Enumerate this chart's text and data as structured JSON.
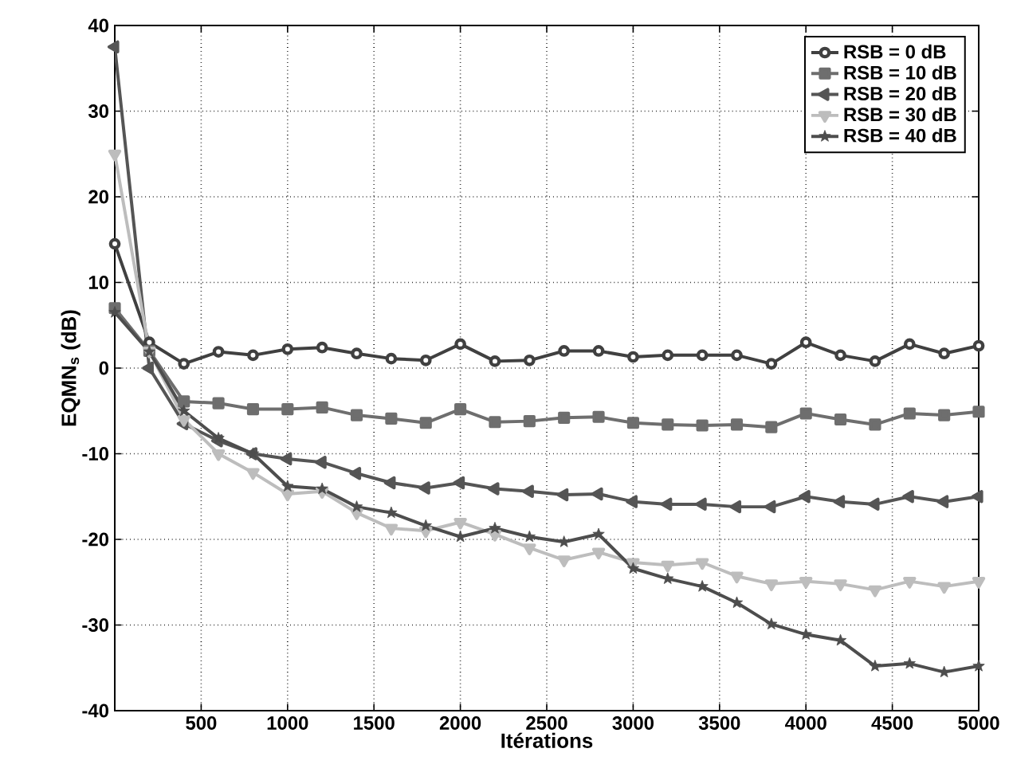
{
  "chart_data": {
    "type": "line",
    "xlabel": "Itérations",
    "ylabel": "EQMN$_{s}$ (dB)",
    "x": [
      0,
      200,
      400,
      600,
      800,
      1000,
      1200,
      1400,
      1600,
      1800,
      2000,
      2200,
      2400,
      2600,
      2800,
      3000,
      3200,
      3400,
      3600,
      3800,
      4000,
      4200,
      4400,
      4600,
      4800,
      5000
    ],
    "series": [
      {
        "name": "RSB =  0 dB",
        "color": "#404040",
        "marker": "circle",
        "values": [
          14.5,
          3,
          0.5,
          1.9,
          1.5,
          2.2,
          2.4,
          1.7,
          1.1,
          0.9,
          2.8,
          0.8,
          0.9,
          2.0,
          2.0,
          1.3,
          1.5,
          1.5,
          1.5,
          0.5,
          3.0,
          1.5,
          0.8,
          2.8,
          1.7,
          2.6
        ]
      },
      {
        "name": "RSB = 10 dB",
        "color": "#6e6e6e",
        "marker": "square",
        "values": [
          7,
          2,
          -3.9,
          -4.1,
          -4.8,
          -4.8,
          -4.6,
          -5.5,
          -5.9,
          -6.4,
          -4.8,
          -6.3,
          -6.2,
          -5.8,
          -5.7,
          -6.4,
          -6.6,
          -6.7,
          -6.6,
          -6.9,
          -5.3,
          -6.0,
          -6.6,
          -5.3,
          -5.5,
          -5.1
        ]
      },
      {
        "name": "RSB = 20 dB",
        "color": "#555555",
        "marker": "triangle",
        "values": [
          37.5,
          0,
          -6.5,
          -8.5,
          -10,
          -10.6,
          -11,
          -12.3,
          -13.4,
          -14,
          -13.4,
          -14.1,
          -14.4,
          -14.8,
          -14.7,
          -15.6,
          -15.9,
          -15.9,
          -16.2,
          -16.2,
          -15,
          -15.6,
          -15.9,
          -15,
          -15.6,
          -15
        ]
      },
      {
        "name": "RSB = 30 dB",
        "color": "#bdbdbd",
        "marker": "triangle",
        "values": [
          25,
          2,
          -6,
          -10,
          -12.2,
          -14.7,
          -14.4,
          -16.9,
          -18.7,
          -19,
          -18,
          -19.4,
          -21,
          -22.4,
          -21.5,
          -22.7,
          -23,
          -22.7,
          -24.3,
          -25.2,
          -24.9,
          -25.2,
          -25.9,
          -24.9,
          -25.5,
          -24.9
        ]
      },
      {
        "name": "RSB = 40 dB",
        "color": "#4d4d4d",
        "marker": "star",
        "values": [
          6.5,
          1.9,
          -5,
          -8.2,
          -10,
          -13.8,
          -14.1,
          -16.2,
          -16.9,
          -18.4,
          -19.7,
          -18.7,
          -19.7,
          -20.3,
          -19.4,
          -23.4,
          -24.6,
          -25.5,
          -27.4,
          -29.9,
          -31.1,
          -31.8,
          -34.8,
          -34.5,
          -35.5,
          -34.8
        ]
      }
    ],
    "xlim": [
      0,
      5000
    ],
    "ylim": [
      -40,
      40
    ],
    "xticks": [
      500,
      1000,
      1500,
      2000,
      2500,
      3000,
      3500,
      4000,
      4500,
      5000
    ],
    "yticks": [
      -40,
      -30,
      -20,
      -10,
      0,
      10,
      20,
      30,
      40
    ],
    "grid": true,
    "legend": "top right",
    "line_style": "solid"
  }
}
